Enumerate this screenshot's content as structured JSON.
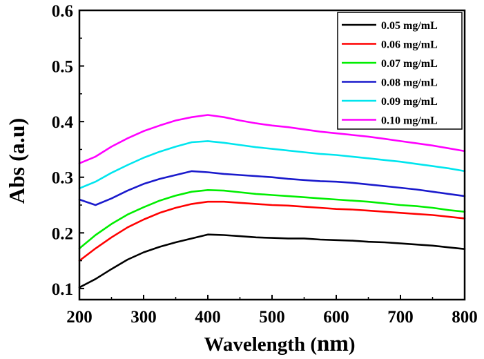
{
  "chart_data": {
    "type": "line",
    "title": "",
    "xlabel": "Wavelength (nm)",
    "xlabel_main": "Wavelength (",
    "xlabel_unit": "nm",
    "xlabel_close": ")",
    "ylabel": "Abs (a.u)",
    "xlim": [
      200,
      800
    ],
    "ylim": [
      0.08,
      0.6
    ],
    "xticks": [
      200,
      300,
      400,
      500,
      600,
      700,
      800
    ],
    "xtick_labels": [
      "200",
      "300",
      "400",
      "500",
      "600",
      "700",
      "800"
    ],
    "yticks": [
      0.1,
      0.2,
      0.3,
      0.4,
      0.5,
      0.6
    ],
    "ytick_labels": [
      "0.1",
      "0.2",
      "0.3",
      "0.4",
      "0.5",
      "0.6"
    ],
    "grid": false,
    "legend_position": "top-right",
    "x": [
      200,
      225,
      250,
      275,
      300,
      325,
      350,
      375,
      400,
      425,
      450,
      475,
      500,
      525,
      550,
      575,
      600,
      625,
      650,
      675,
      700,
      725,
      750,
      775,
      800
    ],
    "series": [
      {
        "name": "0.05 mg/mL",
        "color": "#000000",
        "values": [
          0.102,
          0.117,
          0.135,
          0.152,
          0.165,
          0.175,
          0.183,
          0.19,
          0.197,
          0.196,
          0.194,
          0.192,
          0.191,
          0.19,
          0.19,
          0.188,
          0.187,
          0.186,
          0.184,
          0.183,
          0.181,
          0.179,
          0.177,
          0.174,
          0.171
        ]
      },
      {
        "name": "0.06 mg/mL",
        "color": "#ff0000",
        "values": [
          0.15,
          0.172,
          0.192,
          0.21,
          0.224,
          0.236,
          0.245,
          0.252,
          0.256,
          0.256,
          0.254,
          0.252,
          0.25,
          0.249,
          0.247,
          0.245,
          0.243,
          0.242,
          0.24,
          0.238,
          0.236,
          0.234,
          0.232,
          0.229,
          0.226
        ]
      },
      {
        "name": "0.07 mg/mL",
        "color": "#00ee00",
        "values": [
          0.172,
          0.196,
          0.216,
          0.233,
          0.246,
          0.258,
          0.267,
          0.274,
          0.277,
          0.276,
          0.273,
          0.27,
          0.268,
          0.266,
          0.264,
          0.262,
          0.26,
          0.258,
          0.256,
          0.253,
          0.25,
          0.248,
          0.245,
          0.241,
          0.238
        ]
      },
      {
        "name": "0.08 mg/mL",
        "color": "#1a1acc",
        "values": [
          0.26,
          0.25,
          0.262,
          0.276,
          0.288,
          0.297,
          0.304,
          0.311,
          0.309,
          0.306,
          0.304,
          0.302,
          0.3,
          0.297,
          0.295,
          0.293,
          0.292,
          0.29,
          0.287,
          0.284,
          0.281,
          0.278,
          0.274,
          0.27,
          0.266
        ]
      },
      {
        "name": "0.09 mg/mL",
        "color": "#00e5ee",
        "values": [
          0.28,
          0.292,
          0.308,
          0.322,
          0.335,
          0.346,
          0.355,
          0.363,
          0.365,
          0.362,
          0.358,
          0.354,
          0.351,
          0.348,
          0.345,
          0.342,
          0.34,
          0.337,
          0.334,
          0.331,
          0.328,
          0.324,
          0.32,
          0.316,
          0.311
        ]
      },
      {
        "name": "0.10 mg/mL",
        "color": "#ff00ff",
        "values": [
          0.325,
          0.337,
          0.355,
          0.37,
          0.383,
          0.393,
          0.402,
          0.408,
          0.412,
          0.408,
          0.402,
          0.397,
          0.393,
          0.39,
          0.386,
          0.382,
          0.379,
          0.376,
          0.373,
          0.369,
          0.365,
          0.361,
          0.357,
          0.352,
          0.347
        ]
      }
    ]
  }
}
